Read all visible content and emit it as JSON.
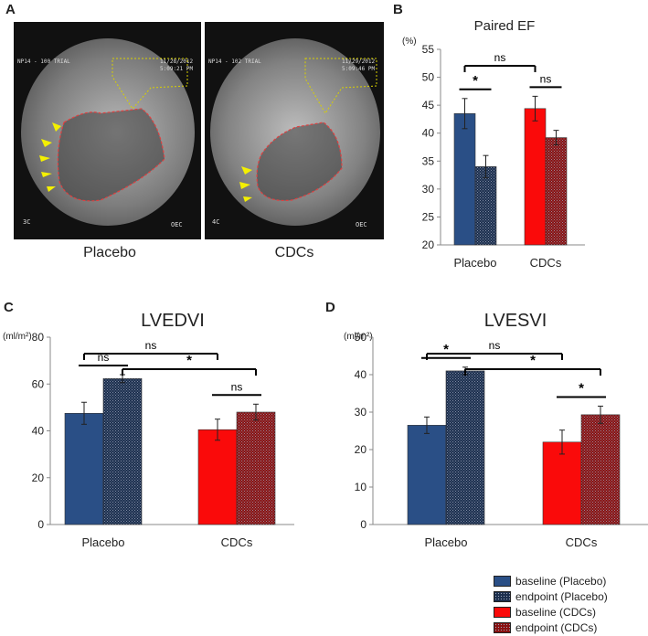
{
  "panels": {
    "a": {
      "letter": "A",
      "left_label": "Placebo",
      "right_label": "CDCs",
      "left_view": "3C",
      "right_view": "4C",
      "oec": "OEC",
      "left_header": "NP14 - 100 TRIAL",
      "right_header": "NP14 - 102 TRIAL",
      "left_date": "11/28/2012",
      "right_date": "11/29/2012",
      "left_time": "5:09:21 PM",
      "right_time": "5:09:46 PM"
    },
    "b": {
      "letter": "B"
    },
    "c": {
      "letter": "C"
    },
    "d": {
      "letter": "D"
    }
  },
  "colors": {
    "baseline_placebo": "#2a4f86",
    "endpoint_placebo": "#1b2e4e",
    "baseline_cdcs": "#fa0a0a",
    "endpoint_cdcs": "#8a1010"
  },
  "legend": [
    {
      "label": "baseline (Placebo)",
      "color": "#2a4f86",
      "pattern": false
    },
    {
      "label": "endpoint (Placebo)",
      "color": "#1b2e4e",
      "pattern": true
    },
    {
      "label": "baseline (CDCs)",
      "color": "#fa0a0a",
      "pattern": false
    },
    {
      "label": "endpoint (CDCs)",
      "color": "#8a1010",
      "pattern": true
    }
  ],
  "chart_data": [
    {
      "id": "b",
      "type": "bar",
      "title": "Paired EF",
      "unit": "(%)",
      "categories": [
        "Placebo",
        "CDCs"
      ],
      "ylim": [
        20,
        55
      ],
      "yticks": [
        20,
        25,
        30,
        35,
        40,
        45,
        50,
        55
      ],
      "series": [
        {
          "name": "baseline",
          "values": [
            43.5,
            44.4
          ],
          "errors": [
            2.7,
            2.2
          ]
        },
        {
          "name": "endpoint",
          "values": [
            34.0,
            39.2
          ],
          "errors": [
            2.0,
            1.3
          ]
        }
      ],
      "annotations": [
        {
          "text": "ns",
          "from": [
            0,
            0
          ],
          "to": [
            1,
            0
          ]
        },
        {
          "text": "*",
          "from": [
            0,
            0
          ],
          "to": [
            0,
            1
          ]
        },
        {
          "text": "ns",
          "from": [
            1,
            0
          ],
          "to": [
            1,
            1
          ]
        }
      ]
    },
    {
      "id": "c",
      "type": "bar",
      "title": "LVEDVI",
      "unit": "(ml/m²)",
      "categories": [
        "Placebo",
        "CDCs"
      ],
      "ylim": [
        0,
        80
      ],
      "yticks": [
        0,
        20,
        40,
        60,
        80
      ],
      "series": [
        {
          "name": "baseline",
          "values": [
            47.5,
            40.5
          ],
          "errors": [
            4.7,
            4.5
          ]
        },
        {
          "name": "endpoint",
          "values": [
            62.3,
            48.0
          ],
          "errors": [
            1.7,
            3.4
          ]
        }
      ],
      "annotations": [
        {
          "text": "ns",
          "from": [
            0,
            0
          ],
          "to": [
            1,
            0
          ]
        },
        {
          "text": "*",
          "from": [
            0,
            1
          ],
          "to": [
            1,
            1
          ]
        },
        {
          "text": "ns",
          "from": [
            0,
            0
          ],
          "to": [
            0,
            1
          ]
        },
        {
          "text": "ns",
          "from": [
            1,
            0
          ],
          "to": [
            1,
            1
          ]
        }
      ]
    },
    {
      "id": "d",
      "type": "bar",
      "title": "LVESVI",
      "unit": "(ml/m²)",
      "categories": [
        "Placebo",
        "CDCs"
      ],
      "ylim": [
        0,
        50
      ],
      "yticks": [
        0,
        10,
        20,
        30,
        40,
        50
      ],
      "series": [
        {
          "name": "baseline",
          "values": [
            26.5,
            22.0
          ],
          "errors": [
            2.2,
            3.2
          ]
        },
        {
          "name": "endpoint",
          "values": [
            41.0,
            29.3
          ],
          "errors": [
            1.0,
            2.3
          ]
        }
      ],
      "annotations": [
        {
          "text": "ns",
          "from": [
            0,
            0
          ],
          "to": [
            1,
            0
          ]
        },
        {
          "text": "*",
          "from": [
            0,
            1
          ],
          "to": [
            1,
            1
          ]
        },
        {
          "text": "*",
          "from": [
            0,
            0
          ],
          "to": [
            0,
            1
          ]
        },
        {
          "text": "*",
          "from": [
            1,
            0
          ],
          "to": [
            1,
            1
          ]
        }
      ]
    }
  ]
}
